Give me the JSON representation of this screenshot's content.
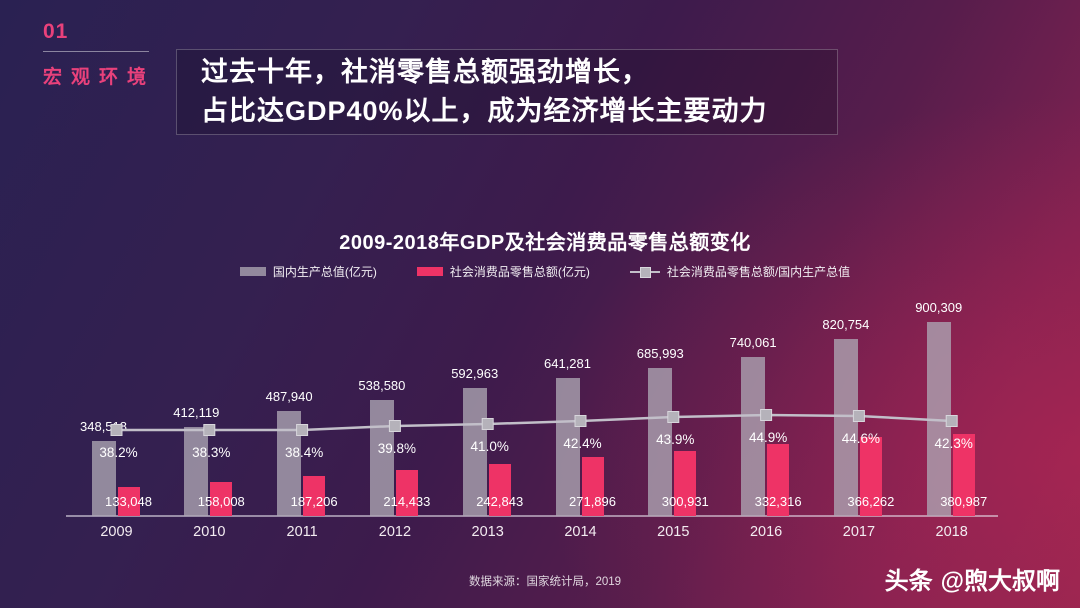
{
  "page": {
    "section_number": "01",
    "section_label": "宏观环境",
    "headline_line1": "过去十年，社消零售总额强劲增长，",
    "headline_line2": "占比达GDP40%以上，成为经济增长主要动力",
    "source": "数据来源：国家统计局，2019",
    "watermark_brand": "头条",
    "watermark_handle": "@煦大叔啊"
  },
  "colors": {
    "accent_pink": "#E9417B",
    "gdp_bar": "rgba(173,167,180,0.78)",
    "retail_bar": "#EE3366",
    "ratio_line": "#C2BFC9",
    "marker_fill": "#B5B2BA",
    "marker_stroke": "#D8D6DC"
  },
  "chart_data": {
    "type": "bar",
    "title": "2009-2018年GDP及社会消费品零售总额变化",
    "categories": [
      "2009",
      "2010",
      "2011",
      "2012",
      "2013",
      "2014",
      "2015",
      "2016",
      "2017",
      "2018"
    ],
    "series": [
      {
        "name": "国内生产总值(亿元)",
        "type": "bar",
        "values": [
          348518,
          412119,
          487940,
          538580,
          592963,
          641281,
          685993,
          740061,
          820754,
          900309
        ]
      },
      {
        "name": "社会消费品零售总额(亿元)",
        "type": "bar",
        "values": [
          133048,
          158008,
          187206,
          214433,
          242843,
          271896,
          300931,
          332316,
          366262,
          380987
        ]
      },
      {
        "name": "社会消费品零售总额/国内生产总值",
        "type": "line",
        "unit": "%",
        "values": [
          38.2,
          38.3,
          38.4,
          39.8,
          41.0,
          42.4,
          43.9,
          44.9,
          44.6,
          42.3
        ]
      }
    ],
    "xlabel": "",
    "ylabel": "",
    "legend_position": "top",
    "gridlines": false
  }
}
